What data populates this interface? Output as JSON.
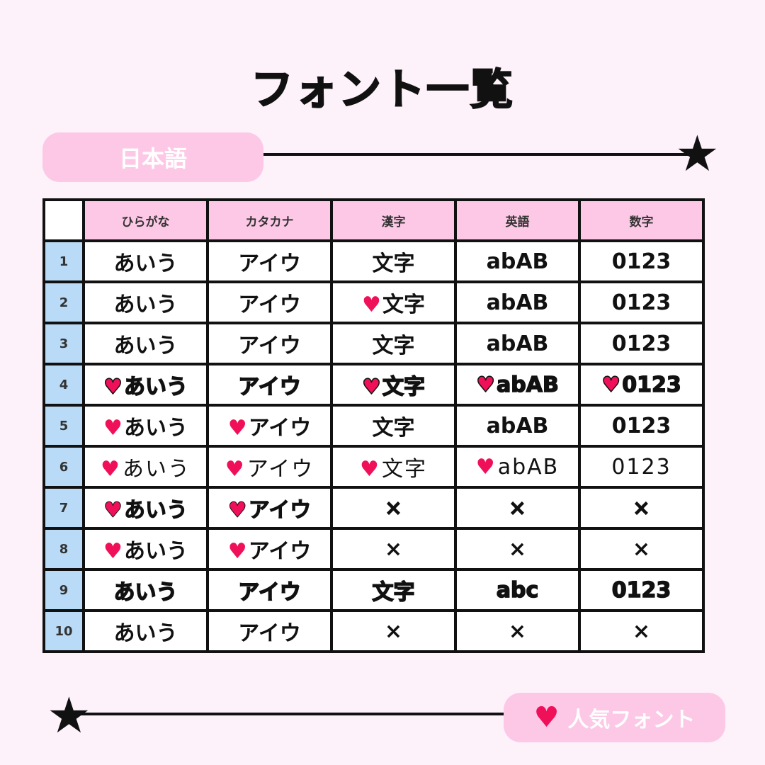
{
  "title": "フォント一覧",
  "section_label": "日本語",
  "legend_label": "人気フォント",
  "colors": {
    "background": "#fdf1fa",
    "pill": "#fcc8e6",
    "header": "#fcc8e6",
    "row_number": "#b9dbf7",
    "heart": "#f0105a"
  },
  "icons": {
    "popular": "heart-icon",
    "decor": "star-icon"
  },
  "columns": [
    "ひらがな",
    "カタカナ",
    "漢字",
    "英語",
    "数字"
  ],
  "rows": [
    {
      "num": "1",
      "cells": [
        {
          "text": "あいう",
          "popular": false
        },
        {
          "text": "アイウ",
          "popular": false
        },
        {
          "text": "文字",
          "popular": false
        },
        {
          "text": "abAB",
          "popular": false
        },
        {
          "text": "0123",
          "popular": false
        }
      ]
    },
    {
      "num": "2",
      "cells": [
        {
          "text": "あいう",
          "popular": false
        },
        {
          "text": "アイウ",
          "popular": false
        },
        {
          "text": "文字",
          "popular": true
        },
        {
          "text": "abAB",
          "popular": false
        },
        {
          "text": "0123",
          "popular": false
        }
      ]
    },
    {
      "num": "3",
      "cells": [
        {
          "text": "あいう",
          "popular": false
        },
        {
          "text": "アイウ",
          "popular": false
        },
        {
          "text": "文字",
          "popular": false
        },
        {
          "text": "abAB",
          "popular": false
        },
        {
          "text": "0123",
          "popular": false
        }
      ]
    },
    {
      "num": "4",
      "cells": [
        {
          "text": "あいう",
          "popular": true
        },
        {
          "text": "アイウ",
          "popular": false
        },
        {
          "text": "文字",
          "popular": true
        },
        {
          "text": "abAB",
          "popular": true
        },
        {
          "text": "0123",
          "popular": true
        }
      ]
    },
    {
      "num": "5",
      "cells": [
        {
          "text": "あいう",
          "popular": true
        },
        {
          "text": "アイウ",
          "popular": true
        },
        {
          "text": "文字",
          "popular": false
        },
        {
          "text": "abAB",
          "popular": false
        },
        {
          "text": "0123",
          "popular": false
        }
      ]
    },
    {
      "num": "6",
      "cells": [
        {
          "text": "あいう",
          "popular": true
        },
        {
          "text": "アイウ",
          "popular": true
        },
        {
          "text": "文字",
          "popular": true
        },
        {
          "text": "abAB",
          "popular": true
        },
        {
          "text": "0123",
          "popular": false
        }
      ]
    },
    {
      "num": "7",
      "cells": [
        {
          "text": "あいう",
          "popular": true
        },
        {
          "text": "アイウ",
          "popular": true
        },
        {
          "text": "×",
          "popular": false
        },
        {
          "text": "×",
          "popular": false
        },
        {
          "text": "×",
          "popular": false
        }
      ]
    },
    {
      "num": "8",
      "cells": [
        {
          "text": "あいう",
          "popular": true
        },
        {
          "text": "アイウ",
          "popular": true
        },
        {
          "text": "×",
          "popular": false
        },
        {
          "text": "×",
          "popular": false
        },
        {
          "text": "×",
          "popular": false
        }
      ]
    },
    {
      "num": "9",
      "cells": [
        {
          "text": "あいう",
          "popular": false
        },
        {
          "text": "アイウ",
          "popular": false
        },
        {
          "text": "文字",
          "popular": false
        },
        {
          "text": "abc",
          "popular": false
        },
        {
          "text": "0123",
          "popular": false
        }
      ]
    },
    {
      "num": "10",
      "cells": [
        {
          "text": "あいう",
          "popular": false
        },
        {
          "text": "アイウ",
          "popular": false
        },
        {
          "text": "×",
          "popular": false
        },
        {
          "text": "×",
          "popular": false
        },
        {
          "text": "×",
          "popular": false
        }
      ]
    }
  ]
}
